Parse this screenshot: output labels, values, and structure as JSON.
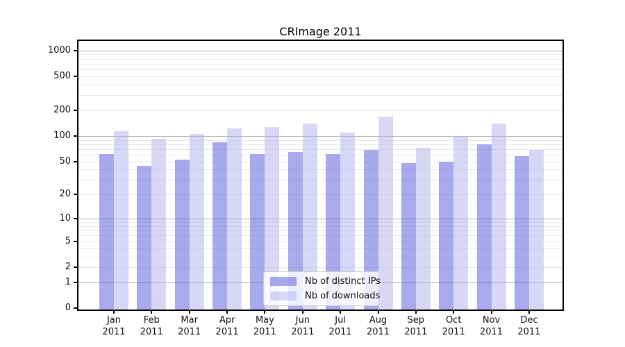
{
  "title": "CRImage 2011",
  "chart_data": {
    "type": "bar",
    "title": "CRImage 2011",
    "xlabel": "",
    "ylabel": "",
    "categories": [
      "Jan 2011",
      "Feb 2011",
      "Mar 2011",
      "Apr 2011",
      "May 2011",
      "Jun 2011",
      "Jul 2011",
      "Aug 2011",
      "Sep 2011",
      "Oct 2011",
      "Nov 2011",
      "Dec 2011"
    ],
    "series": [
      {
        "name": "Nb of distinct IPs",
        "color": "#a9a9ee",
        "render_rgba": "rgba(83,83,221,0.5)",
        "values": [
          61,
          44,
          53,
          84,
          61,
          65,
          61,
          68,
          48,
          50,
          79,
          58
        ]
      },
      {
        "name": "Nb of downloads",
        "color": "#d8d8f6",
        "render_rgba": "rgba(177,177,237,0.5)",
        "values": [
          114,
          92,
          105,
          123,
          127,
          141,
          110,
          170,
          73,
          100,
          140,
          68
        ]
      }
    ],
    "y_scale": "log10(value+1)",
    "y_ticks": [
      0,
      1,
      2,
      5,
      10,
      20,
      50,
      100,
      200,
      500,
      1000
    ],
    "ylim": [
      0,
      1300
    ],
    "grid": {
      "major": [
        1,
        10,
        100,
        1000
      ],
      "minor_decades": [
        1,
        10,
        100
      ],
      "minor_multiples": [
        2,
        3,
        4,
        5,
        6,
        7,
        8,
        9
      ],
      "major_color": "#b1b1b1",
      "minor_color": "#e8e8e8"
    },
    "legend_position": "lower-center-inside"
  }
}
